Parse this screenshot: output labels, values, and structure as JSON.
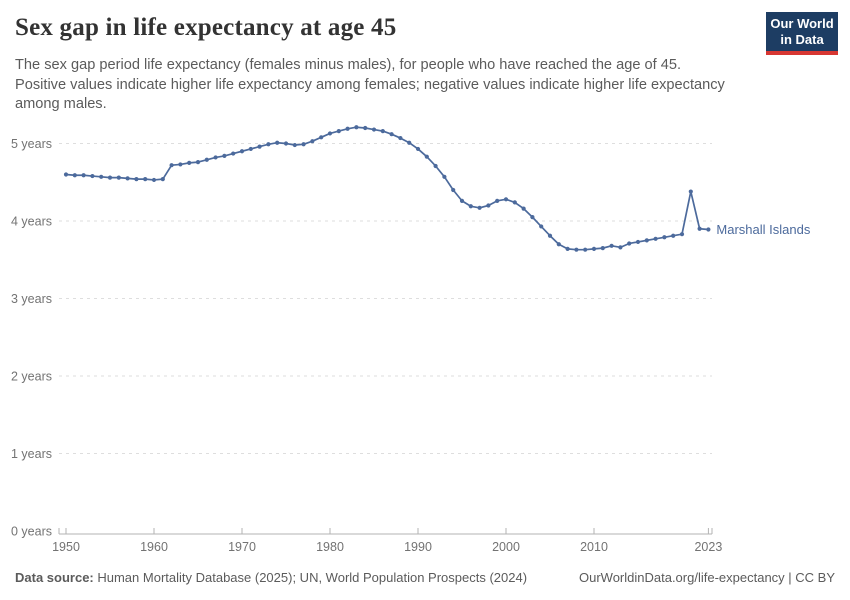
{
  "header": {
    "title": "Sex gap in life expectancy at age 45",
    "subtitle_lines": [
      "The sex gap period life expectancy (females minus males), for people who have reached the age of 45.",
      "Positive values indicate higher life expectancy among females; negative values indicate higher life expectancy among males."
    ],
    "logo": {
      "line1": "Our World",
      "line2": "in Data"
    }
  },
  "chart_data": {
    "type": "line",
    "title": "Sex gap in life expectancy at age 45",
    "xlabel": "",
    "ylabel": "years",
    "ylim": [
      0,
      5.25
    ],
    "xlim": [
      1950,
      2024
    ],
    "grid": "dashed-horizontal",
    "legend_position": "end-of-line-label",
    "x_ticks": [
      1950,
      1960,
      1970,
      1980,
      1990,
      2000,
      2010,
      2023
    ],
    "y_ticks": [
      {
        "value": 0,
        "label": "0 years"
      },
      {
        "value": 1,
        "label": "1 years"
      },
      {
        "value": 2,
        "label": "2 years"
      },
      {
        "value": 3,
        "label": "3 years"
      },
      {
        "value": 4,
        "label": "4 years"
      },
      {
        "value": 5,
        "label": "5 years"
      }
    ],
    "series": [
      {
        "name": "Marshall Islands",
        "color": "#4c6a9c",
        "x": [
          1950,
          1951,
          1952,
          1953,
          1954,
          1955,
          1956,
          1957,
          1958,
          1959,
          1960,
          1961,
          1962,
          1963,
          1964,
          1965,
          1966,
          1967,
          1968,
          1969,
          1970,
          1971,
          1972,
          1973,
          1974,
          1975,
          1976,
          1977,
          1978,
          1979,
          1980,
          1981,
          1982,
          1983,
          1984,
          1985,
          1986,
          1987,
          1988,
          1989,
          1990,
          1991,
          1992,
          1993,
          1994,
          1995,
          1996,
          1997,
          1998,
          1999,
          2000,
          2001,
          2002,
          2003,
          2004,
          2005,
          2006,
          2007,
          2008,
          2009,
          2010,
          2011,
          2012,
          2013,
          2014,
          2015,
          2016,
          2017,
          2018,
          2019,
          2020,
          2021,
          2022,
          2023
        ],
        "values": [
          4.6,
          4.59,
          4.59,
          4.58,
          4.57,
          4.56,
          4.56,
          4.55,
          4.54,
          4.54,
          4.53,
          4.54,
          4.72,
          4.73,
          4.75,
          4.76,
          4.79,
          4.82,
          4.84,
          4.87,
          4.9,
          4.93,
          4.96,
          4.99,
          5.01,
          5.0,
          4.98,
          4.99,
          5.03,
          5.08,
          5.13,
          5.16,
          5.19,
          5.21,
          5.2,
          5.18,
          5.16,
          5.12,
          5.07,
          5.01,
          4.93,
          4.83,
          4.71,
          4.57,
          4.4,
          4.26,
          4.19,
          4.17,
          4.2,
          4.26,
          4.28,
          4.24,
          4.16,
          4.05,
          3.93,
          3.81,
          3.7,
          3.64,
          3.63,
          3.63,
          3.64,
          3.65,
          3.68,
          3.66,
          3.71,
          3.73,
          3.75,
          3.77,
          3.79,
          3.81,
          3.83,
          4.38,
          3.9,
          3.89
        ]
      }
    ]
  },
  "footer": {
    "source_label": "Data source:",
    "source_text": " Human Mortality Database (2025); UN, World Population Prospects (2024)",
    "right": "OurWorldinData.org/life-expectancy | CC BY"
  },
  "colors": {
    "line": "#4c6a9c",
    "grid": "#dedede",
    "axis": "#b3b3b3",
    "tick_text": "#737373",
    "logo_bg": "#1d3d63",
    "logo_bar": "#d73732"
  }
}
